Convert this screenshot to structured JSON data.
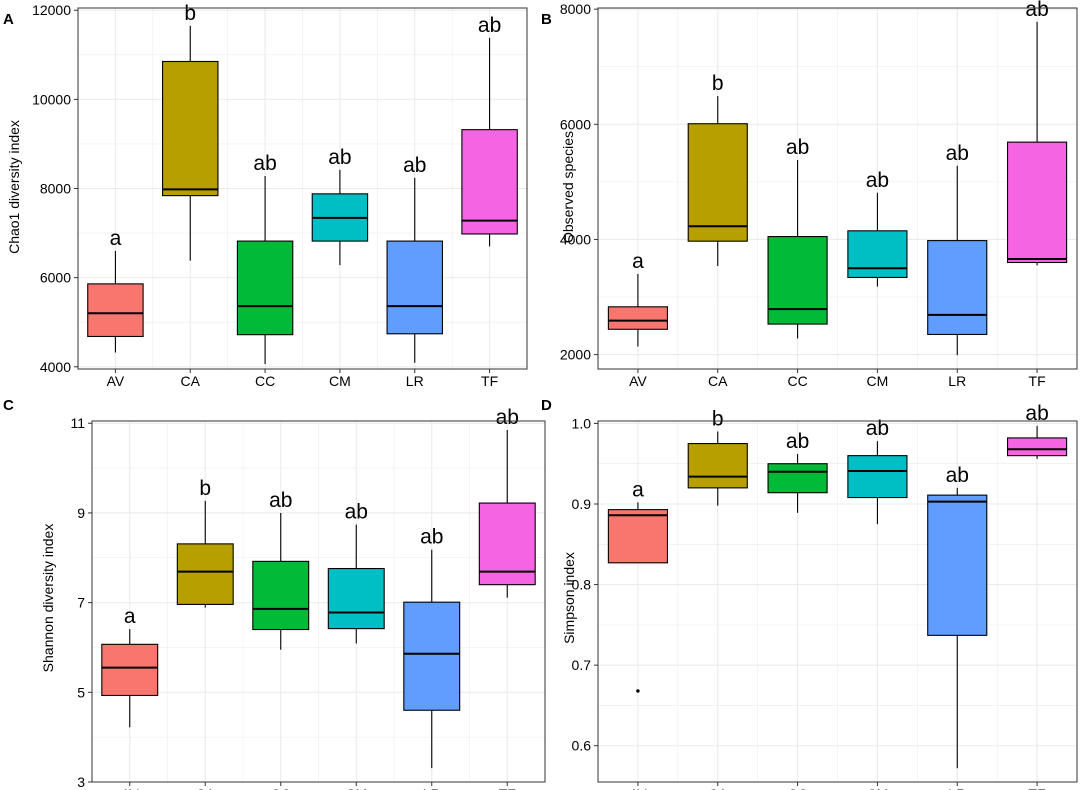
{
  "chart_data": [
    {
      "panel": "A",
      "type": "box",
      "ylabel": "Chao1 diversity index",
      "xlabel": "",
      "ylim": [
        3950,
        12050
      ],
      "yticks": [
        4000,
        6000,
        8000,
        10000,
        12000
      ],
      "categories": [
        "AV",
        "CA",
        "CC",
        "CM",
        "LR",
        "TF"
      ],
      "boxes": [
        {
          "min": 4320,
          "q1": 4680,
          "median": 5200,
          "q3": 5860,
          "max": 6600,
          "letter": "a"
        },
        {
          "min": 6380,
          "q1": 7840,
          "median": 7980,
          "q3": 10850,
          "max": 11650,
          "letter": "b"
        },
        {
          "min": 4060,
          "q1": 4720,
          "median": 5360,
          "q3": 6820,
          "max": 8280,
          "letter": "ab"
        },
        {
          "min": 6280,
          "q1": 6820,
          "median": 7340,
          "q3": 7880,
          "max": 8420,
          "letter": "ab"
        },
        {
          "min": 4090,
          "q1": 4740,
          "median": 5360,
          "q3": 6820,
          "max": 8240,
          "letter": "ab"
        },
        {
          "min": 6700,
          "q1": 6980,
          "median": 7280,
          "q3": 9320,
          "max": 11380,
          "letter": "ab"
        }
      ],
      "outliers": []
    },
    {
      "panel": "B",
      "type": "box",
      "ylabel": "Observed species",
      "xlabel": "",
      "ylim": [
        1750,
        8020
      ],
      "yticks": [
        2000,
        4000,
        6000,
        8000
      ],
      "categories": [
        "AV",
        "CA",
        "CC",
        "CM",
        "LR",
        "TF"
      ],
      "boxes": [
        {
          "min": 2140,
          "q1": 2440,
          "median": 2590,
          "q3": 2830,
          "max": 3400,
          "letter": "a"
        },
        {
          "min": 3540,
          "q1": 3970,
          "median": 4230,
          "q3": 6010,
          "max": 6490,
          "letter": "b"
        },
        {
          "min": 2280,
          "q1": 2530,
          "median": 2790,
          "q3": 4050,
          "max": 5380,
          "letter": "ab"
        },
        {
          "min": 3180,
          "q1": 3340,
          "median": 3500,
          "q3": 4150,
          "max": 4810,
          "letter": "ab"
        },
        {
          "min": 1990,
          "q1": 2350,
          "median": 2690,
          "q3": 3980,
          "max": 5280,
          "letter": "ab"
        },
        {
          "min": 3550,
          "q1": 3600,
          "median": 3660,
          "q3": 5690,
          "max": 7780,
          "letter": "ab"
        }
      ],
      "outliers": []
    },
    {
      "panel": "C",
      "type": "box",
      "ylabel": "Shannon diversity index",
      "xlabel": "",
      "ylim": [
        3.0,
        11.05
      ],
      "yticks": [
        3,
        5,
        7,
        9,
        11
      ],
      "categories": [
        "AV",
        "CA",
        "CC",
        "CM",
        "LR",
        "TF"
      ],
      "boxes": [
        {
          "min": 4.22,
          "q1": 4.93,
          "median": 5.55,
          "q3": 6.07,
          "max": 6.41,
          "letter": "a"
        },
        {
          "min": 6.89,
          "q1": 6.96,
          "median": 7.69,
          "q3": 8.31,
          "max": 9.27,
          "letter": "b"
        },
        {
          "min": 5.95,
          "q1": 6.4,
          "median": 6.86,
          "q3": 7.92,
          "max": 9.0,
          "letter": "ab"
        },
        {
          "min": 6.09,
          "q1": 6.42,
          "median": 6.78,
          "q3": 7.76,
          "max": 8.74,
          "letter": "ab"
        },
        {
          "min": 3.31,
          "q1": 4.6,
          "median": 5.86,
          "q3": 7.01,
          "max": 8.18,
          "letter": "ab"
        },
        {
          "min": 7.11,
          "q1": 7.4,
          "median": 7.69,
          "q3": 9.22,
          "max": 10.85,
          "letter": "ab"
        }
      ],
      "outliers": []
    },
    {
      "panel": "D",
      "type": "box",
      "ylabel": "Simpson index",
      "xlabel": "",
      "ylim": [
        0.555,
        1.003
      ],
      "yticks": [
        0.6,
        0.7,
        0.8,
        0.9,
        1.0
      ],
      "ytick_labels": [
        "0.6",
        "0.7",
        "0.8",
        "0.9",
        "1.0"
      ],
      "categories": [
        "AV",
        "CA",
        "CC",
        "CM",
        "LR",
        "TF"
      ],
      "boxes": [
        {
          "min": 0.827,
          "q1": 0.827,
          "median": 0.886,
          "q3": 0.893,
          "max": 0.902,
          "letter": "a"
        },
        {
          "min": 0.898,
          "q1": 0.92,
          "median": 0.934,
          "q3": 0.975,
          "max": 0.99,
          "letter": "b"
        },
        {
          "min": 0.889,
          "q1": 0.914,
          "median": 0.94,
          "q3": 0.95,
          "max": 0.962,
          "letter": "ab"
        },
        {
          "min": 0.875,
          "q1": 0.908,
          "median": 0.941,
          "q3": 0.96,
          "max": 0.978,
          "letter": "ab"
        },
        {
          "min": 0.572,
          "q1": 0.737,
          "median": 0.903,
          "q3": 0.911,
          "max": 0.92,
          "letter": "ab"
        },
        {
          "min": 0.956,
          "q1": 0.96,
          "median": 0.968,
          "q3": 0.982,
          "max": 0.997,
          "letter": "ab"
        }
      ],
      "outliers": [
        {
          "category": "AV",
          "value": 0.668
        }
      ]
    }
  ],
  "colors": {
    "fills": [
      "#F8766D",
      "#B79F00",
      "#00BA38",
      "#00BFC4",
      "#619CFF",
      "#F564E3"
    ],
    "stroke": "#000000",
    "grid": "#EBEBEB",
    "panel_border": "#333333"
  }
}
